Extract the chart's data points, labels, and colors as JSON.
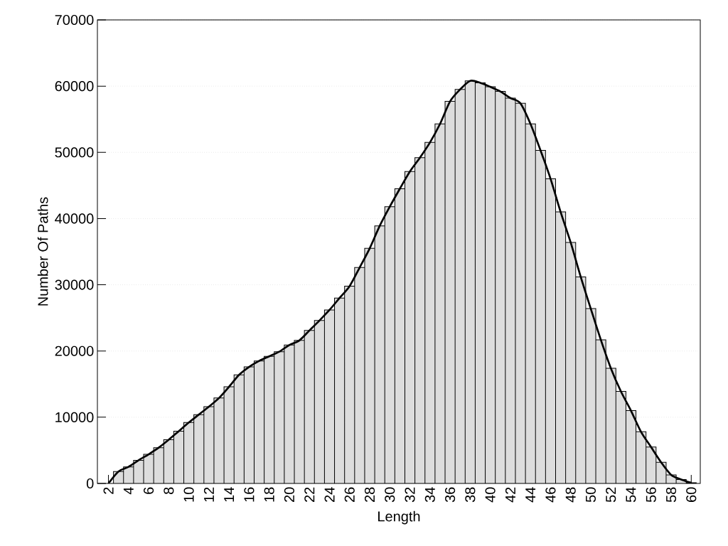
{
  "chart_data": {
    "type": "bar",
    "xlabel": "Length",
    "ylabel": "Number Of Paths",
    "x": [
      3,
      4,
      5,
      6,
      7,
      8,
      9,
      10,
      11,
      12,
      13,
      14,
      15,
      16,
      17,
      18,
      19,
      20,
      21,
      22,
      23,
      24,
      25,
      26,
      27,
      28,
      29,
      30,
      31,
      32,
      33,
      34,
      35,
      36,
      37,
      38,
      39,
      40,
      41,
      42,
      43,
      44,
      45,
      46,
      47,
      48,
      49,
      50,
      51,
      52,
      53,
      54,
      55,
      56,
      57,
      58,
      59,
      60
    ],
    "series": [
      {
        "color": "#dddddd",
        "values": [
          1800,
          2500,
          3500,
          4400,
          5400,
          6600,
          7900,
          9200,
          10400,
          11600,
          12900,
          14600,
          16400,
          17600,
          18500,
          19200,
          19900,
          20900,
          21600,
          23100,
          24600,
          26200,
          28000,
          29800,
          32600,
          35500,
          38900,
          41800,
          44500,
          47100,
          49200,
          51500,
          54300,
          57700,
          59500,
          60800,
          60500,
          59900,
          59200,
          58200,
          57400,
          54300,
          50300,
          46000,
          41000,
          36400,
          31200,
          26400,
          21700,
          17400,
          13900,
          11000,
          7800,
          5500,
          3200,
          1300,
          600,
          100
        ]
      },
      {
        "type": "line",
        "color": "#000000",
        "x": [
          2,
          3,
          4,
          5,
          6,
          7,
          8,
          9,
          10,
          11,
          12,
          13,
          14,
          15,
          16,
          17,
          18,
          19,
          20,
          21,
          22,
          23,
          24,
          25,
          26,
          27,
          28,
          29,
          30,
          31,
          32,
          33,
          34,
          35,
          36,
          37,
          38,
          39,
          40,
          41,
          42,
          43,
          44,
          45,
          46,
          47,
          48,
          49,
          50,
          51,
          52,
          53,
          54,
          55,
          56,
          57,
          58,
          59,
          60
        ],
        "values": [
          0,
          1800,
          2500,
          3500,
          4400,
          5400,
          6600,
          7900,
          9200,
          10400,
          11600,
          12900,
          14600,
          16400,
          17600,
          18500,
          19200,
          19900,
          20900,
          21600,
          23100,
          24600,
          26200,
          28000,
          29800,
          32600,
          35500,
          38900,
          41800,
          44500,
          47100,
          49200,
          51500,
          54300,
          57700,
          59500,
          60800,
          60500,
          59900,
          59200,
          58200,
          57400,
          54300,
          50300,
          46000,
          41000,
          36400,
          31200,
          26400,
          21700,
          17400,
          13900,
          11000,
          7800,
          5500,
          3200,
          1300,
          600,
          100
        ]
      }
    ],
    "xlim": [
      0.9,
      60.9
    ],
    "ylim": [
      0,
      70000
    ],
    "xticks": [
      2,
      4,
      6,
      8,
      10,
      12,
      14,
      16,
      18,
      20,
      22,
      24,
      26,
      28,
      30,
      32,
      34,
      36,
      38,
      40,
      42,
      44,
      46,
      48,
      50,
      52,
      54,
      56,
      58,
      60
    ],
    "yticks": [
      0,
      10000,
      20000,
      30000,
      40000,
      50000,
      60000,
      70000
    ],
    "grid": "y"
  }
}
